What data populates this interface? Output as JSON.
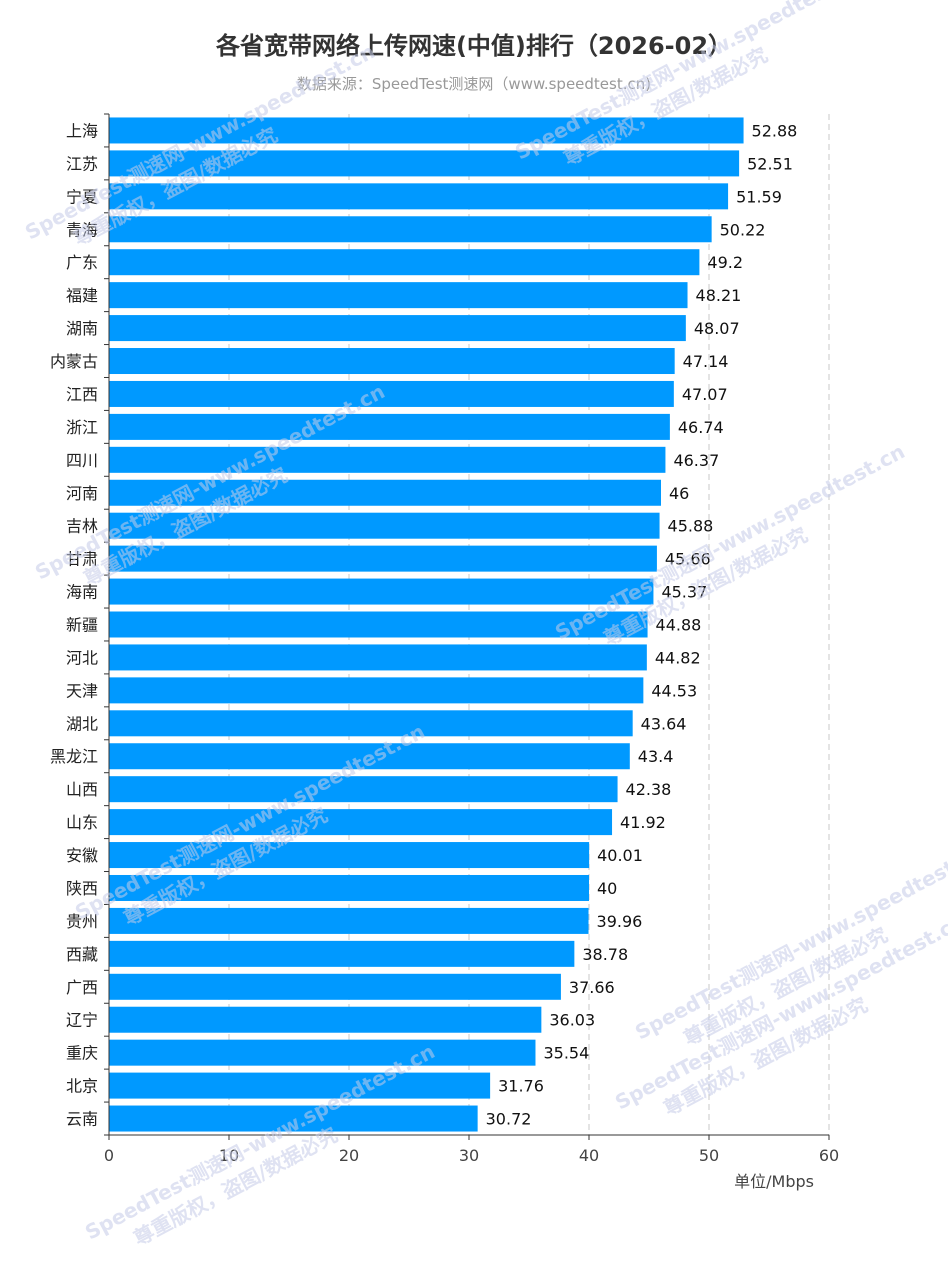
{
  "chart_data": {
    "type": "bar",
    "orientation": "horizontal",
    "title": "各省宽带网络上传网速(中值)排行（2026-02）",
    "subtitle": "数据来源：SpeedTest测速网（www.speedtest.cn)",
    "xlabel": "单位/Mbps",
    "ylabel": "",
    "xlim": [
      0,
      60
    ],
    "xticks": [
      0,
      10,
      20,
      30,
      40,
      50,
      60
    ],
    "bar_color": "#0099ff",
    "grid": "vertical dashed",
    "categories": [
      "上海",
      "江苏",
      "宁夏",
      "青海",
      "广东",
      "福建",
      "湖南",
      "内蒙古",
      "江西",
      "浙江",
      "四川",
      "河南",
      "吉林",
      "甘肃",
      "海南",
      "新疆",
      "河北",
      "天津",
      "湖北",
      "黑龙江",
      "山西",
      "山东",
      "安徽",
      "陕西",
      "贵州",
      "西藏",
      "广西",
      "辽宁",
      "重庆",
      "北京",
      "云南"
    ],
    "values": [
      52.88,
      52.51,
      51.59,
      50.22,
      49.2,
      48.21,
      48.07,
      47.14,
      47.07,
      46.74,
      46.37,
      46,
      45.88,
      45.66,
      45.37,
      44.88,
      44.82,
      44.53,
      43.64,
      43.4,
      42.38,
      41.92,
      40.01,
      40,
      39.96,
      38.78,
      37.66,
      36.03,
      35.54,
      31.76,
      30.72
    ],
    "value_labels": [
      "52.88",
      "52.51",
      "51.59",
      "50.22",
      "49.2",
      "48.21",
      "48.07",
      "47.14",
      "47.07",
      "46.74",
      "46.37",
      "46",
      "45.88",
      "45.66",
      "45.37",
      "44.88",
      "44.82",
      "44.53",
      "43.64",
      "43.4",
      "42.38",
      "41.92",
      "40.01",
      "40",
      "39.96",
      "38.78",
      "37.66",
      "36.03",
      "35.54",
      "31.76",
      "30.72"
    ]
  },
  "watermark": {
    "line1": "SpeedTest测速网-www.speedtest.cn",
    "line2": "尊重版权，盗图/数据必究"
  }
}
